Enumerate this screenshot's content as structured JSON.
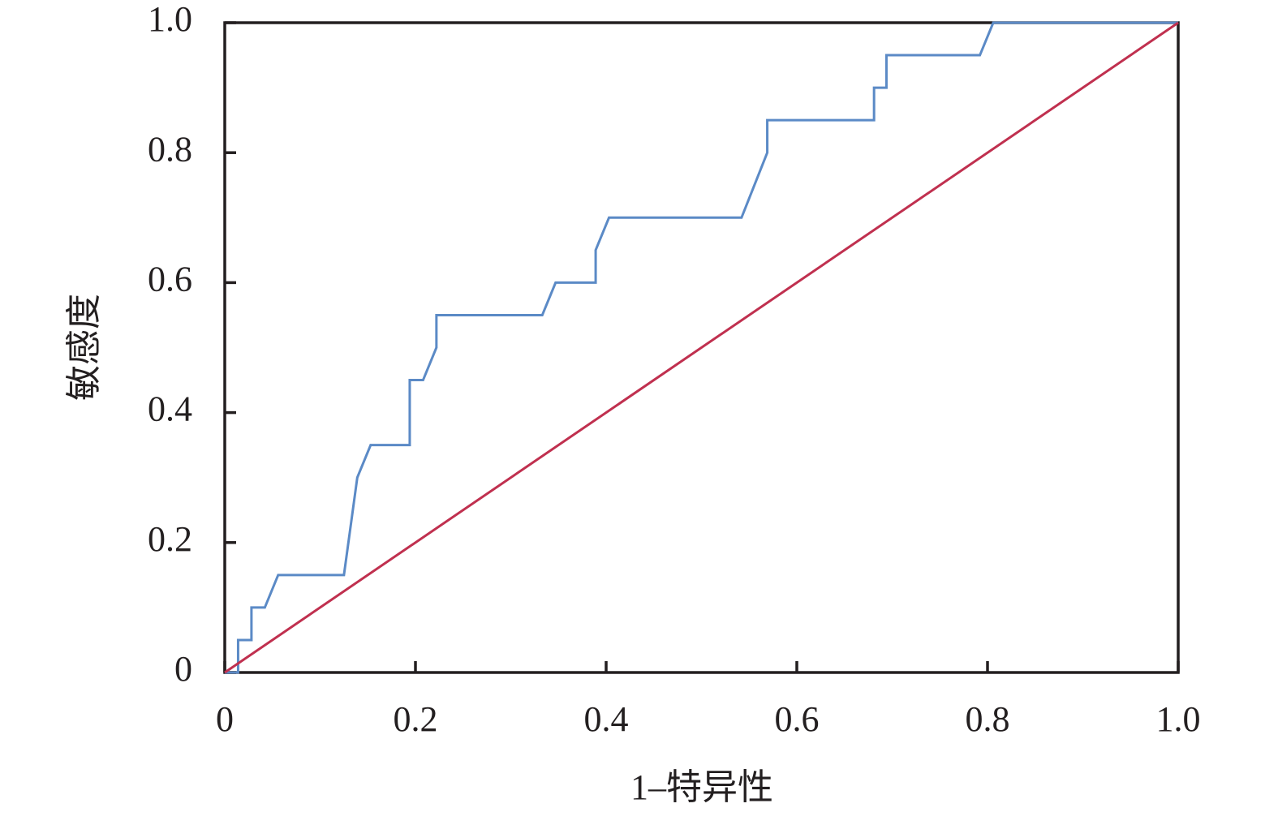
{
  "chart_data": {
    "type": "line",
    "xlabel": "1–特异性",
    "ylabel": "敏感度",
    "xlim": [
      0,
      1
    ],
    "ylim": [
      0,
      1
    ],
    "xticks": [
      0,
      0.2,
      0.4,
      0.6,
      0.8,
      {
        "value": 1,
        "label": "1.0"
      }
    ],
    "yticks": [
      0,
      0.2,
      0.4,
      0.6,
      0.8,
      {
        "value": 1,
        "label": "1.0"
      }
    ],
    "series": [
      {
        "color": "#5b8ac6",
        "x": [
          0,
          0.014,
          0.014,
          0.028,
          0.028,
          0.042,
          0.056,
          0.125,
          0.139,
          0.153,
          0.194,
          0.194,
          0.208,
          0.222,
          0.222,
          0.333,
          0.347,
          0.389,
          0.389,
          0.403,
          0.542,
          0.569,
          0.569,
          0.681,
          0.681,
          0.694,
          0.694,
          0.792,
          0.806,
          1
        ],
        "values": [
          0,
          0,
          0.05,
          0.05,
          0.1,
          0.1,
          0.15,
          0.15,
          0.3,
          0.35,
          0.35,
          0.45,
          0.45,
          0.5,
          0.55,
          0.55,
          0.6,
          0.6,
          0.65,
          0.7,
          0.7,
          0.8,
          0.85,
          0.85,
          0.9,
          0.9,
          0.95,
          0.95,
          1,
          1
        ]
      },
      {
        "color": "#c0304f",
        "x": [
          0,
          1
        ],
        "values": [
          0,
          1
        ]
      }
    ]
  }
}
